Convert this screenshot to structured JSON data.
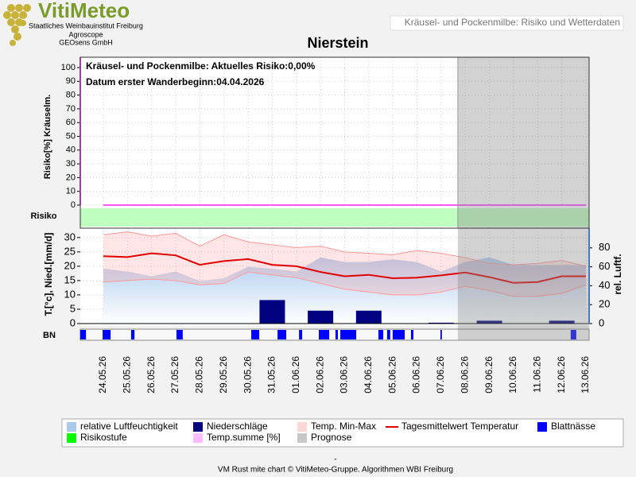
{
  "header": {
    "logo": "VitiMeteo",
    "org_lines": [
      "Staatliches Weinbauinstitut Freiburg",
      "Agroscope",
      "GEOsens GmbH"
    ],
    "page_title": "Kräusel- und Pockenmilbe: Risiko und Wetterdaten"
  },
  "chart_data": [
    {
      "type": "line",
      "title": "Nierstein",
      "ylabel": "Risiko[%] Kräuselm.",
      "annotations": [
        "Kräusel- und Pockenmilbe: Aktuelles Risiko:0,00%",
        "Datum erster Wanderbeginn:04.04.2026"
      ],
      "ylim": [
        0,
        100
      ],
      "yticks": [
        0,
        10,
        20,
        30,
        40,
        50,
        60,
        70,
        80,
        90,
        100
      ],
      "grid": true,
      "series": [
        {
          "name": "Temp.summe [%]",
          "color": "#ff55ff",
          "values": [
            0,
            0,
            0,
            0,
            0,
            0,
            0,
            0,
            0,
            0,
            0,
            0,
            0,
            0,
            0,
            0,
            0,
            0,
            0,
            0,
            0
          ]
        }
      ],
      "risk": {
        "label": "Risiko",
        "name": "Risikostufe",
        "color": "#00ff00"
      }
    },
    {
      "type": "combo",
      "ylabel": "T.[°c], Nied.[mm/d]",
      "y2label": "rel. Luftf.",
      "bn_label": "BN",
      "categories": [
        "24.05.26",
        "25.05.26",
        "26.05.26",
        "27.05.26",
        "28.05.26",
        "29.05.26",
        "30.05.26",
        "31.05.26",
        "01.06.26",
        "02.06.26",
        "03.06.26",
        "04.06.26",
        "05.06.26",
        "06.06.26",
        "07.06.26",
        "08.06.26",
        "09.06.26",
        "10.06.26",
        "11.06.26",
        "12.06.26",
        "13.06.26"
      ],
      "ylim": [
        0,
        33
      ],
      "yticks": [
        0,
        5,
        10,
        15,
        20,
        25,
        30
      ],
      "y2lim": [
        0,
        100
      ],
      "y2ticks": [
        0,
        20,
        40,
        60,
        80
      ],
      "grid": true,
      "series": [
        {
          "name": "relative Luftfeuchtigkeit",
          "type": "area",
          "axis": "y2",
          "color": "#a8c8ec",
          "values": [
            58,
            55,
            50,
            55,
            45,
            48,
            60,
            58,
            55,
            70,
            65,
            65,
            68,
            65,
            55,
            65,
            70,
            62,
            62,
            62,
            62
          ]
        },
        {
          "name": "Niederschläge",
          "type": "bar",
          "color": "#000080",
          "values": [
            0,
            0,
            0,
            0,
            0,
            0,
            0,
            8.2,
            0,
            4.5,
            0,
            4.5,
            0,
            0,
            0.3,
            0,
            1,
            0,
            0,
            1,
            0
          ]
        },
        {
          "name": "Temp. Min-Max",
          "type": "band",
          "color": "#ff9999",
          "max": [
            31,
            32,
            30.5,
            31.5,
            27,
            31,
            28.5,
            27.5,
            26.5,
            27,
            25,
            24.5,
            24,
            25.5,
            24.5,
            23,
            21,
            20.5,
            21,
            22,
            20
          ],
          "min": [
            14.5,
            15,
            15.5,
            15,
            13.5,
            14,
            18,
            17,
            16,
            14,
            12,
            11,
            10,
            10,
            11,
            13,
            11.5,
            9.5,
            9.5,
            10.5,
            13.5
          ]
        },
        {
          "name": "Tagesmittelwert Temperatur",
          "type": "line",
          "color": "#e00000",
          "values": [
            23.5,
            23.2,
            24.5,
            23.8,
            20.5,
            21.8,
            22.5,
            20.5,
            20,
            18,
            16.5,
            17,
            15.8,
            16,
            16.8,
            17.8,
            16.2,
            14.2,
            14.5,
            16.5,
            16.5
          ]
        },
        {
          "name": "Blattnässe",
          "type": "intervals",
          "color": "#0000ff",
          "intervals": [
            [
              -0.96,
              -0.72
            ],
            [
              -0.03,
              0.3
            ],
            [
              1.15,
              1.29
            ],
            [
              3.03,
              3.29
            ],
            [
              6.13,
              6.46
            ],
            [
              7.22,
              7.58
            ],
            [
              8.11,
              8.24
            ],
            [
              8.93,
              9.36
            ],
            [
              9.62,
              9.72
            ],
            [
              9.82,
              10.48
            ],
            [
              11.4,
              11.6
            ],
            [
              11.76,
              11.89
            ],
            [
              11.99,
              12.49
            ],
            [
              12.75,
              12.85
            ],
            [
              13.97,
              14.03
            ],
            [
              19.37,
              19.6
            ]
          ]
        }
      ],
      "forecast": {
        "name": "Prognose",
        "color": "#c8c8c8",
        "from": "07.06.26"
      }
    }
  ],
  "footer": {
    "dash": "-",
    "credit": "VM Rust mite chart © VitiMeteo-Gruppe. Algorithmen WBI Freiburg"
  }
}
